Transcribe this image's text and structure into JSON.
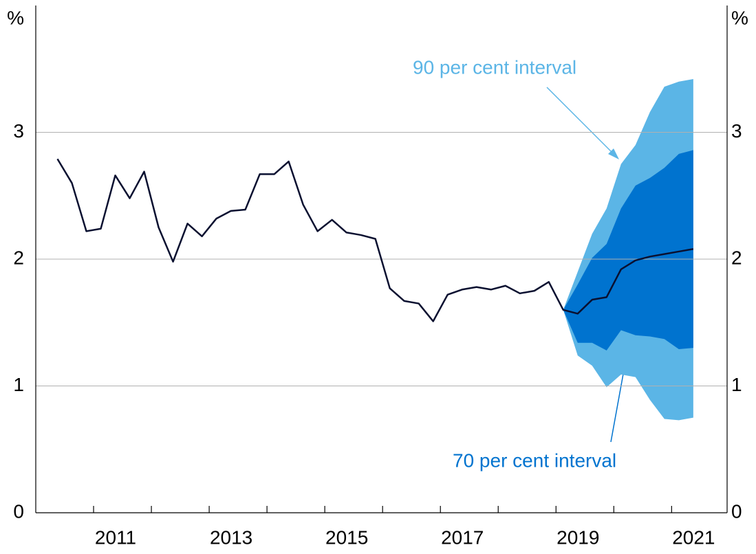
{
  "chart_data": {
    "type": "line",
    "y_unit_label": "%",
    "xlim": [
      2010,
      2021.96
    ],
    "xticks": [
      2011,
      2012,
      2013,
      2014,
      2015,
      2016,
      2017,
      2018,
      2019,
      2020,
      2021
    ],
    "xtick_labels": [
      {
        "value": 2011.5,
        "label": "2011"
      },
      {
        "value": 2013.5,
        "label": "2013"
      },
      {
        "value": 2015.5,
        "label": "2015"
      },
      {
        "value": 2017.5,
        "label": "2017"
      },
      {
        "value": 2019.5,
        "label": "2019"
      },
      {
        "value": 2021.5,
        "label": "2021"
      }
    ],
    "ylim": [
      0,
      4
    ],
    "yticks": [
      0,
      1,
      2,
      3
    ],
    "y2lim": [
      0,
      4
    ],
    "y2ticks": [
      0,
      1,
      2,
      3
    ],
    "grid": true,
    "x": [
      2010.375,
      2010.625,
      2010.875,
      2011.125,
      2011.375,
      2011.625,
      2011.875,
      2012.125,
      2012.375,
      2012.625,
      2012.875,
      2013.125,
      2013.375,
      2013.625,
      2013.875,
      2014.125,
      2014.375,
      2014.625,
      2014.875,
      2015.125,
      2015.375,
      2015.625,
      2015.875,
      2016.125,
      2016.375,
      2016.625,
      2016.875,
      2017.125,
      2017.375,
      2017.625,
      2017.875,
      2018.125,
      2018.375,
      2018.625,
      2018.875,
      2019.125,
      2019.375,
      2019.625,
      2019.875,
      2020.125,
      2020.375,
      2020.625,
      2020.875,
      2021.125,
      2021.375
    ],
    "line": {
      "color": "#0a1030",
      "values": [
        2.79,
        2.6,
        2.22,
        2.24,
        2.66,
        2.48,
        2.69,
        2.25,
        1.98,
        2.28,
        2.18,
        2.32,
        2.38,
        2.39,
        2.67,
        2.67,
        2.77,
        2.43,
        2.22,
        2.31,
        2.21,
        2.19,
        2.16,
        1.77,
        1.67,
        1.65,
        1.51,
        1.72,
        1.76,
        1.78,
        1.76,
        1.79,
        1.73,
        1.75,
        1.82,
        1.6,
        1.57,
        1.68,
        1.7,
        1.92,
        1.99,
        2.02,
        2.04,
        2.06,
        2.08
      ]
    },
    "band_x": [
      2019.125,
      2019.375,
      2019.625,
      2019.875,
      2020.125,
      2020.375,
      2020.625,
      2020.875,
      2021.125,
      2021.375
    ],
    "bands": [
      {
        "name": "90 per cent interval",
        "color": "#5bb5e6",
        "upper": [
          1.6,
          1.9,
          2.2,
          2.4,
          2.75,
          2.9,
          3.16,
          3.36,
          3.4,
          3.42
        ],
        "lower": [
          1.6,
          1.24,
          1.16,
          0.99,
          1.09,
          1.07,
          0.89,
          0.74,
          0.73,
          0.75
        ]
      },
      {
        "name": "70 per cent interval",
        "color": "#0073cf",
        "upper": [
          1.6,
          1.8,
          2.01,
          2.12,
          2.4,
          2.58,
          2.64,
          2.72,
          2.83,
          2.86
        ],
        "lower": [
          1.6,
          1.34,
          1.34,
          1.28,
          1.44,
          1.4,
          1.39,
          1.37,
          1.29,
          1.3
        ]
      }
    ]
  }
}
